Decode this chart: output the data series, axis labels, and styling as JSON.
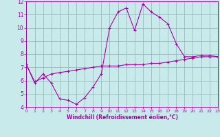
{
  "x": [
    0,
    1,
    2,
    3,
    4,
    5,
    6,
    7,
    8,
    9,
    10,
    11,
    12,
    13,
    14,
    15,
    16,
    17,
    18,
    19,
    20,
    21,
    22,
    23
  ],
  "y_upper": [
    7.2,
    5.8,
    6.5,
    5.8,
    4.6,
    4.5,
    4.2,
    4.7,
    5.5,
    6.5,
    10.0,
    11.2,
    11.5,
    9.8,
    11.8,
    11.2,
    10.8,
    10.3,
    8.8,
    7.8,
    7.8,
    7.9,
    7.9,
    7.8
  ],
  "y_lower": [
    7.2,
    5.9,
    6.2,
    6.5,
    6.6,
    6.7,
    6.8,
    6.9,
    7.0,
    7.1,
    7.1,
    7.1,
    7.2,
    7.2,
    7.2,
    7.3,
    7.3,
    7.4,
    7.5,
    7.6,
    7.7,
    7.8,
    7.8,
    7.8
  ],
  "line_color": "#aa00aa",
  "bg_color": "#c8eaea",
  "grid_color": "#99bbbb",
  "xlabel": "Windchill (Refroidissement éolien,°C)",
  "ylim": [
    4,
    12
  ],
  "xlim": [
    0,
    23
  ],
  "yticks": [
    4,
    5,
    6,
    7,
    8,
    9,
    10,
    11,
    12
  ],
  "xticks": [
    0,
    1,
    2,
    3,
    4,
    5,
    6,
    7,
    8,
    9,
    10,
    11,
    12,
    13,
    14,
    15,
    16,
    17,
    18,
    19,
    20,
    21,
    22,
    23
  ]
}
